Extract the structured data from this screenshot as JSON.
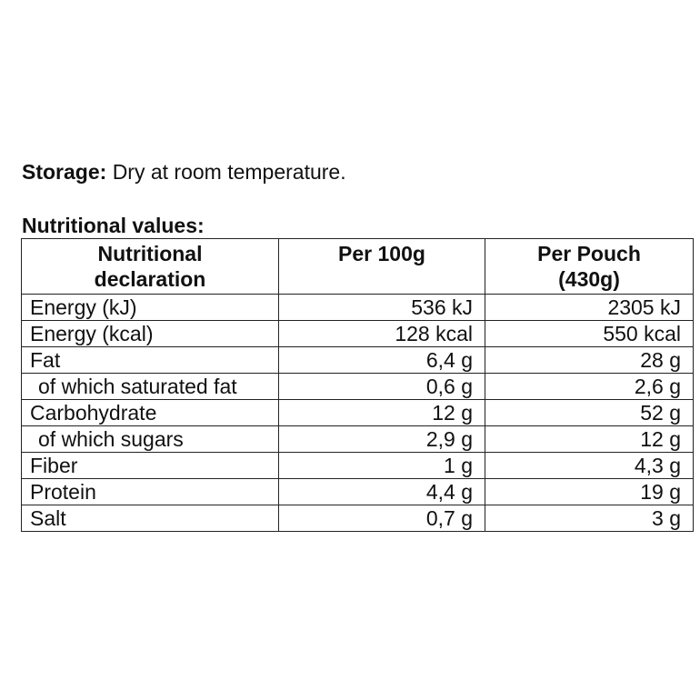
{
  "storage": {
    "label": "Storage:",
    "text": "Dry at room temperature."
  },
  "nutritional_values_title": "Nutritional values:",
  "table": {
    "headers": {
      "declaration_line1": "Nutritional",
      "declaration_line2": "declaration",
      "per100g": "Per 100g",
      "per_pouch_line1": "Per Pouch",
      "per_pouch_line2": "(430g)"
    },
    "rows": [
      {
        "name": "Energy (kJ)",
        "per100g": "536 kJ",
        "per_pouch": "2305 kJ",
        "sub": false
      },
      {
        "name": "Energy (kcal)",
        "per100g": "128 kcal",
        "per_pouch": "550 kcal",
        "sub": false
      },
      {
        "name": "Fat",
        "per100g": "6,4 g",
        "per_pouch": "28 g",
        "sub": false
      },
      {
        "name": "of which saturated fat",
        "per100g": "0,6 g",
        "per_pouch": "2,6 g",
        "sub": true
      },
      {
        "name": "Carbohydrate",
        "per100g": "12 g",
        "per_pouch": "52 g",
        "sub": false
      },
      {
        "name": "of which sugars",
        "per100g": "2,9 g",
        "per_pouch": "12 g",
        "sub": true
      },
      {
        "name": "Fiber",
        "per100g": "1 g",
        "per_pouch": "4,3 g",
        "sub": false
      },
      {
        "name": "Protein",
        "per100g": "4,4 g",
        "per_pouch": "19 g",
        "sub": false
      },
      {
        "name": "Salt",
        "per100g": "0,7 g",
        "per_pouch": "3 g",
        "sub": false
      }
    ]
  }
}
